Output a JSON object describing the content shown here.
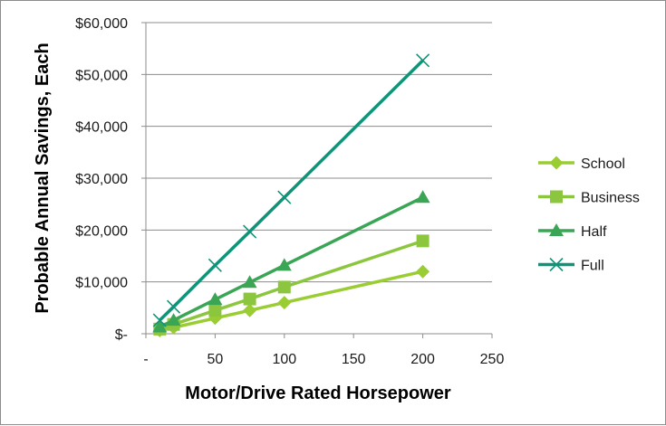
{
  "chart_data": {
    "type": "line",
    "title": "",
    "xlabel": "Motor/Drive Rated Horsepower",
    "ylabel": "Probable Annual Savings, Each",
    "xlim": [
      0,
      250
    ],
    "ylim": [
      0,
      60000
    ],
    "x_ticks": [
      0,
      50,
      100,
      150,
      200,
      250
    ],
    "x_tick_labels": [
      "-",
      "50",
      "100",
      "150",
      "200",
      "250"
    ],
    "y_ticks": [
      0,
      10000,
      20000,
      30000,
      40000,
      50000,
      60000
    ],
    "y_tick_labels": [
      "$-",
      "$10,000",
      "$20,000",
      "$30,000",
      "$40,000",
      "$50,000",
      "$60,000"
    ],
    "grid": "horizontal major",
    "legend_position": "right",
    "series": [
      {
        "name": "School",
        "color": "#9acd32",
        "marker": "diamond",
        "x": [
          10,
          20,
          50,
          75,
          100,
          200
        ],
        "y": [
          600,
          1200,
          3000,
          4500,
          6000,
          12000
        ]
      },
      {
        "name": "Business",
        "color": "#8cc63f",
        "marker": "square",
        "x": [
          10,
          20,
          50,
          75,
          100,
          200
        ],
        "y": [
          900,
          1800,
          4500,
          6700,
          9000,
          17900
        ]
      },
      {
        "name": "Half",
        "color": "#3aa655",
        "marker": "triangle",
        "x": [
          10,
          20,
          50,
          75,
          100,
          200
        ],
        "y": [
          1300,
          2600,
          6600,
          9900,
          13200,
          26300
        ]
      },
      {
        "name": "Full",
        "color": "#0e9478",
        "marker": "x",
        "x": [
          10,
          20,
          50,
          75,
          100,
          200
        ],
        "y": [
          2600,
          5200,
          13200,
          19700,
          26300,
          52700
        ]
      }
    ]
  }
}
